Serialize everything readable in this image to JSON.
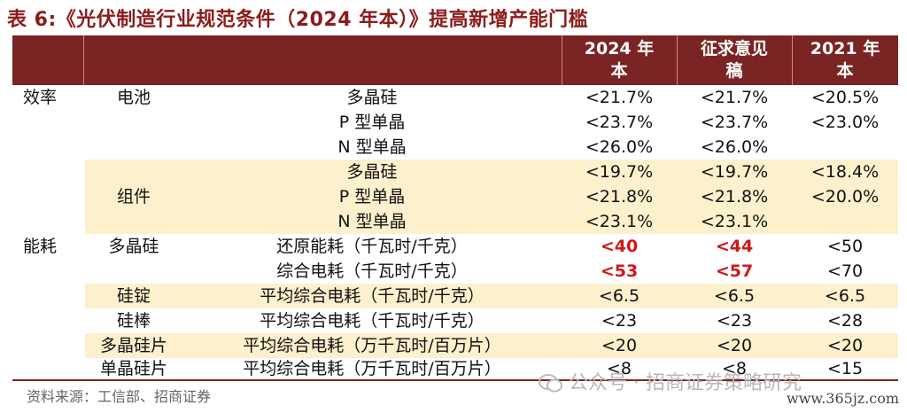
{
  "title": "表 6:《光伏制造行业规范条件（2024 年本）》提高新增产能门槛",
  "header": {
    "col1": "2024 年\n本",
    "col2": "征求意见\n稿",
    "col3": "2021 年\n本"
  },
  "rows": [
    {
      "cat1": "效率",
      "cat2": "电池",
      "item": "多晶硅",
      "c1": "<21.7%",
      "c2": "<21.7%",
      "c3": "<20.5%"
    },
    {
      "cat1": "",
      "cat2": "",
      "item": "P 型单晶",
      "c1": "<23.7%",
      "c2": "<23.7%",
      "c3": "<23.0%"
    },
    {
      "cat1": "",
      "cat2": "",
      "item": "N 型单晶",
      "c1": "<26.0%",
      "c2": "<26.0%",
      "c3": ""
    },
    {
      "cat1": "",
      "cat2": "",
      "item": "多晶硅",
      "c1": "<19.7%",
      "c2": "<19.7%",
      "c3": "<18.4%"
    },
    {
      "cat1": "",
      "cat2": "组件",
      "item": "P 型单晶",
      "c1": "<21.8%",
      "c2": "<21.8%",
      "c3": "<20.0%"
    },
    {
      "cat1": "",
      "cat2": "",
      "item": "N 型单晶",
      "c1": "<23.1%",
      "c2": "<23.1%",
      "c3": ""
    },
    {
      "cat1": "能耗",
      "cat2": "多晶硅",
      "item": "还原能耗（千瓦时/千克）",
      "c1": "<40",
      "c2": "<44",
      "c3": "<50"
    },
    {
      "cat1": "",
      "cat2": "",
      "item": "综合电耗（千瓦时/千克）",
      "c1": "<53",
      "c2": "<57",
      "c3": "<70"
    },
    {
      "cat1": "",
      "cat2": "硅锭",
      "item": "平均综合电耗（千瓦时/千克）",
      "c1": "<6.5",
      "c2": "<6.5",
      "c3": "<6.5"
    },
    {
      "cat1": "",
      "cat2": "硅棒",
      "item": "平均综合电耗（千瓦时/千克）",
      "c1": "<23",
      "c2": "<23",
      "c3": "<28"
    },
    {
      "cat1": "",
      "cat2": "多晶硅片",
      "item": "平均综合电耗（万千瓦时/百万片）",
      "c1": "<20",
      "c2": "<20",
      "c3": "<20"
    },
    {
      "cat1": "",
      "cat2": "单晶硅片",
      "item": "平均综合电耗（万千瓦时/百万片）",
      "c1": "<8",
      "c2": "<8",
      "c3": "<15"
    }
  ],
  "highlight_color": "#d01818",
  "band_color": "#fdf0cc",
  "header_color": "#7a2424",
  "source": "资料来源：工信部、招商证券",
  "watermark": "公众号 · 招商证券策略研究",
  "site": "www.365jz.com"
}
